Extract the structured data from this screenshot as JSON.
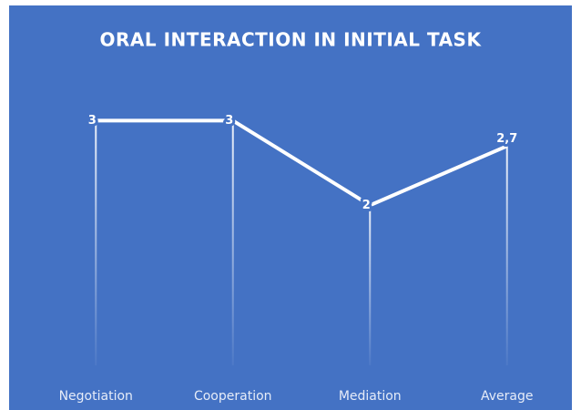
{
  "chart_data": {
    "type": "line",
    "title": "ORAL INTERACTION IN INITIAL TASK",
    "categories": [
      "Negotiation",
      "Cooperation",
      "Mediation",
      "Average"
    ],
    "values": [
      3,
      3,
      2,
      2.7
    ],
    "value_labels": [
      "3",
      "3",
      "2",
      "2,7"
    ],
    "color": "#ffffff",
    "background": "#4472c4",
    "ylim": [
      0,
      3.5
    ]
  }
}
